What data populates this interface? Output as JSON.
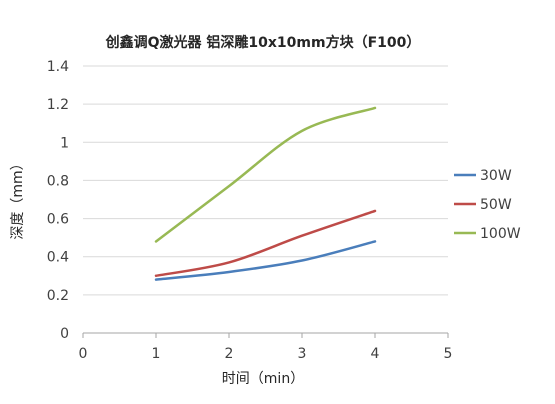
{
  "chart_data": {
    "type": "line",
    "title": "创鑫调Q激光器  铝深雕10x10mm方块（F100）",
    "xlabel": "时间（min）",
    "ylabel": "深度（mm）",
    "xlim": [
      0,
      5
    ],
    "ylim": [
      0,
      1.4
    ],
    "x_ticks": [
      "0",
      "1",
      "2",
      "3",
      "4",
      "5"
    ],
    "y_ticks": [
      "0",
      "0.2",
      "0.4",
      "0.6",
      "0.8",
      "1",
      "1.2",
      "1.4"
    ],
    "grid": "horizontal",
    "legend_position": "right",
    "smooth": true,
    "x": [
      1,
      2,
      3,
      4
    ],
    "series": [
      {
        "name": "30W",
        "color": "#4a7ebb",
        "values": [
          0.28,
          0.32,
          0.38,
          0.48
        ]
      },
      {
        "name": "50W",
        "color": "#be4b48",
        "values": [
          0.3,
          0.37,
          0.51,
          0.64
        ]
      },
      {
        "name": "100W",
        "color": "#98b954",
        "values": [
          0.48,
          0.77,
          1.06,
          1.18
        ]
      }
    ]
  }
}
